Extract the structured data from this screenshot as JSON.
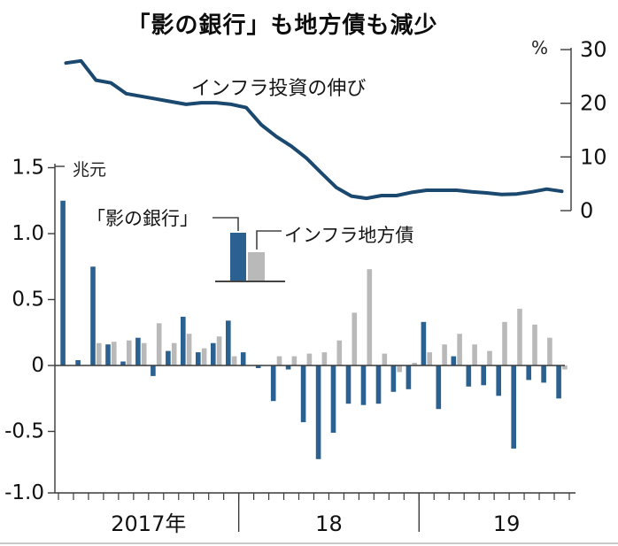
{
  "chart_data": {
    "type": "bar+line",
    "title": "「影の銀行」も地方債も減少",
    "left_axis": {
      "unit": "兆元",
      "tick_labels": [
        "1.5",
        "1.0",
        "0.5",
        "0",
        "-0.5",
        "-1.0"
      ],
      "tick_values": [
        1.5,
        1.0,
        0.5,
        0,
        -0.5,
        -1.0
      ]
    },
    "right_axis": {
      "unit": "%",
      "tick_labels": [
        "30",
        "20",
        "10",
        "0"
      ],
      "tick_values": [
        30,
        20,
        10,
        0
      ],
      "range": [
        0,
        30
      ]
    },
    "x_axis": {
      "year_labels": [
        "2017年",
        "18",
        "19"
      ],
      "months_per_year": [
        12,
        12,
        10
      ]
    },
    "months": [
      "2017-01",
      "2017-02",
      "2017-03",
      "2017-04",
      "2017-05",
      "2017-06",
      "2017-07",
      "2017-08",
      "2017-09",
      "2017-10",
      "2017-11",
      "2017-12",
      "2018-01",
      "2018-02",
      "2018-03",
      "2018-04",
      "2018-05",
      "2018-06",
      "2018-07",
      "2018-08",
      "2018-09",
      "2018-10",
      "2018-11",
      "2018-12",
      "2019-01",
      "2019-02",
      "2019-03",
      "2019-04",
      "2019-05",
      "2019-06",
      "2019-07",
      "2019-08",
      "2019-09",
      "2019-10"
    ],
    "series": [
      {
        "name": "「影の銀行」",
        "type": "bar",
        "unit": "兆元",
        "color": "#2a6191",
        "values": [
          1.25,
          0.04,
          0.75,
          0.16,
          0.03,
          0.21,
          -0.08,
          0.11,
          0.37,
          0.1,
          0.17,
          0.34,
          0.1,
          -0.02,
          -0.27,
          -0.03,
          -0.43,
          -0.71,
          -0.51,
          -0.29,
          -0.3,
          -0.29,
          -0.2,
          -0.18,
          0.33,
          -0.33,
          0.07,
          -0.16,
          -0.15,
          -0.23,
          -0.63,
          -0.11,
          -0.13,
          -0.25
        ]
      },
      {
        "name": "インフラ地方債",
        "type": "bar",
        "unit": "兆元",
        "color": "#b9b9b9",
        "values": [
          0,
          0,
          0.17,
          0.18,
          0.19,
          0.17,
          0.32,
          0.17,
          0.24,
          0.13,
          0.22,
          0.07,
          0,
          0,
          0.07,
          0.07,
          0.09,
          0.1,
          0.19,
          0.4,
          0.73,
          0.09,
          -0.05,
          0.02,
          0.1,
          0.16,
          0.24,
          0.16,
          0.11,
          0.33,
          0.43,
          0.31,
          0.21,
          -0.03
        ]
      },
      {
        "name": "インフラ投資の伸び",
        "type": "line",
        "axis": "right",
        "unit": "%",
        "color": "#1a486e",
        "values": [
          27.5,
          27.9,
          24.3,
          23.8,
          21.8,
          21.3,
          20.8,
          20.3,
          19.8,
          20.1,
          20.1,
          19.8,
          19.2,
          16.0,
          13.8,
          12.0,
          9.8,
          7.0,
          4.3,
          2.7,
          2.3,
          2.8,
          2.8,
          3.4,
          3.8,
          3.8,
          3.8,
          3.5,
          3.3,
          3.0,
          3.1,
          3.5,
          4.0,
          3.6
        ]
      }
    ],
    "colors": {
      "bar_blue": "#2a6191",
      "bar_gray": "#b9b9b9",
      "line_navy": "#1a486e",
      "axis": "#3a3a3a"
    }
  }
}
